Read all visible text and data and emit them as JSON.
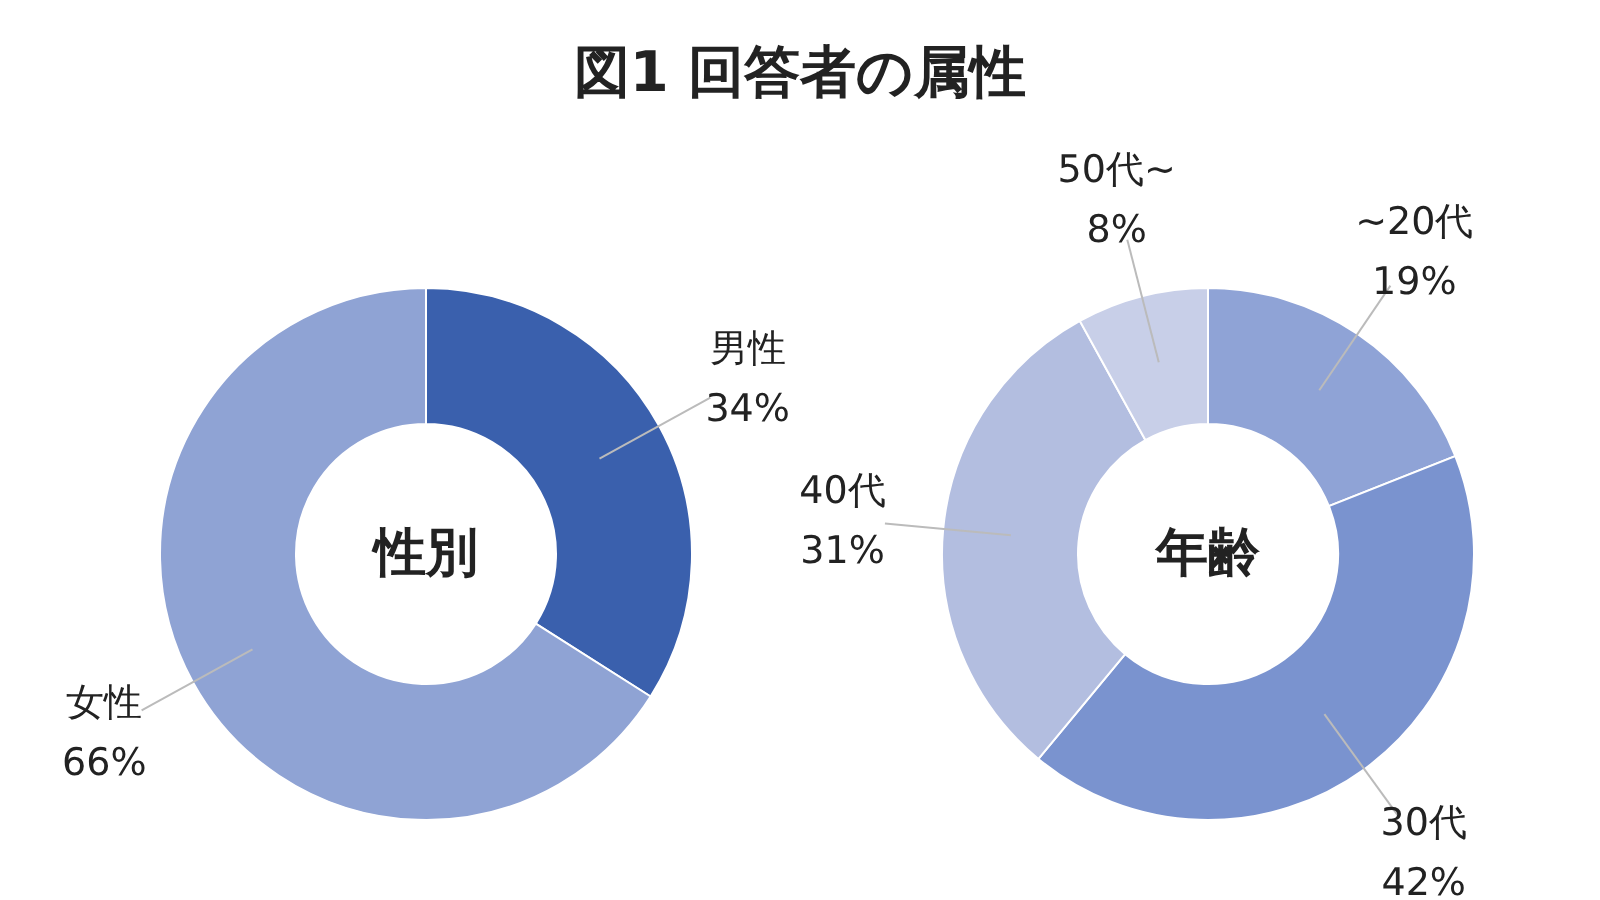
{
  "chart_data": [
    {
      "type": "donut",
      "title": "図1 回答者の属性",
      "annotations": [
        "性別"
      ],
      "categories": [
        "男性",
        "女性"
      ],
      "values": [
        34,
        66
      ],
      "colors": [
        "#3a60ad",
        "#8fa3d4"
      ],
      "value_labels": [
        "34%",
        "66%"
      ]
    },
    {
      "type": "donut",
      "annotations": [
        "年齢"
      ],
      "categories": [
        "~20代",
        "30代",
        "40代",
        "50代~"
      ],
      "values": [
        19,
        42,
        31,
        8
      ],
      "colors": [
        "#8fa3d6",
        "#7a93cf",
        "#b3bee0",
        "#c8cfe8"
      ],
      "value_labels": [
        "19%",
        "42%",
        "31%",
        "8%"
      ]
    }
  ]
}
